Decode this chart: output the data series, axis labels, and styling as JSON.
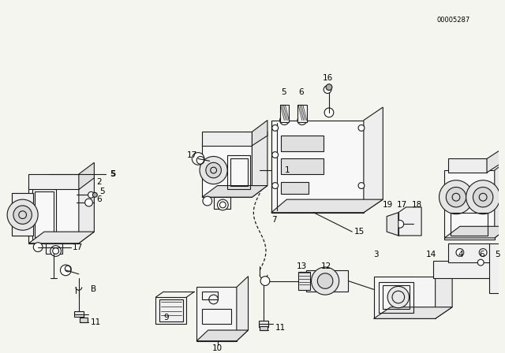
{
  "bg_color": "#f5f5f0",
  "part_number": "00005287",
  "fig_width": 6.4,
  "fig_height": 4.48,
  "dpi": 100,
  "line_color": "#1a1a1a",
  "line_width": 0.8,
  "label_fontsize": 7.5,
  "label_color": "#000000",
  "border_color": "#cccccc"
}
